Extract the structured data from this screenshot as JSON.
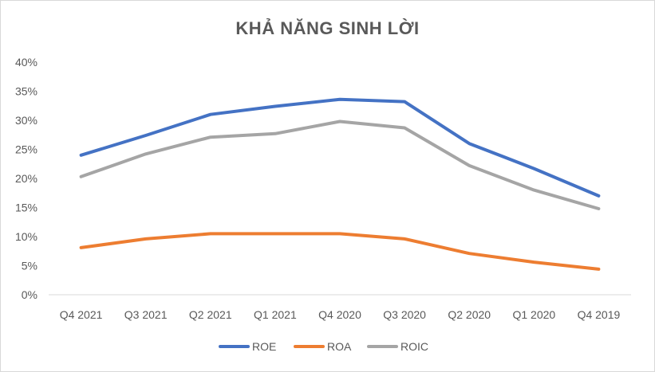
{
  "chart_data": {
    "type": "line",
    "title": "KHẢ NĂNG SINH LỜI",
    "xlabel": "",
    "ylabel": "",
    "categories": [
      "Q4 2021",
      "Q3 2021",
      "Q2 2021",
      "Q1 2021",
      "Q4 2020",
      "Q3 2020",
      "Q2 2020",
      "Q1 2020",
      "Q4 2019"
    ],
    "y_ticks": [
      "0%",
      "5%",
      "10%",
      "15%",
      "20%",
      "25%",
      "30%",
      "35%",
      "40%"
    ],
    "ylim": [
      0,
      40
    ],
    "y_unit": "%",
    "grid": false,
    "legend_position": "bottom",
    "series": [
      {
        "name": "ROE",
        "color": "#4472c4",
        "values": [
          24.0,
          27.4,
          31.0,
          32.4,
          33.6,
          33.2,
          26.0,
          21.7,
          17.0
        ]
      },
      {
        "name": "ROA",
        "color": "#ed7d31",
        "values": [
          8.1,
          9.6,
          10.5,
          10.5,
          10.5,
          9.6,
          7.1,
          5.6,
          4.4
        ]
      },
      {
        "name": "ROIC",
        "color": "#a5a5a5",
        "values": [
          20.3,
          24.2,
          27.1,
          27.7,
          29.8,
          28.7,
          22.2,
          18.0,
          14.8
        ]
      }
    ]
  }
}
